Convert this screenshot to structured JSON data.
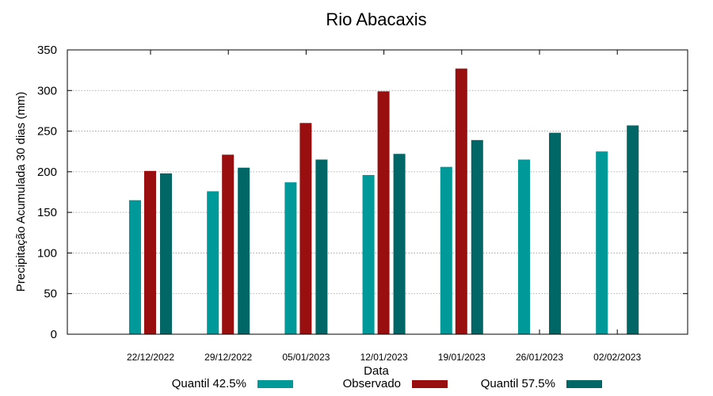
{
  "chart_data": {
    "type": "bar",
    "title": "Rio Abacaxis",
    "xlabel": "Data",
    "ylabel": "Precipitação Acumulada 30 dias (mm)",
    "ylim": [
      0,
      350
    ],
    "yticks": [
      0,
      50,
      100,
      150,
      200,
      250,
      300,
      350
    ],
    "grid": true,
    "legend_position": "bottom",
    "categories": [
      "22/12/2022",
      "29/12/2022",
      "05/01/2023",
      "12/01/2023",
      "19/01/2023",
      "26/01/2023",
      "02/02/2023"
    ],
    "series": [
      {
        "name": "Quantil 42.5%",
        "color": "#009999",
        "values": [
          165,
          176,
          187,
          196,
          206,
          215,
          225
        ]
      },
      {
        "name": "Observado",
        "color": "#990f0f",
        "values": [
          201,
          221,
          260,
          299,
          327,
          null,
          null
        ]
      },
      {
        "name": "Quantil 57.5%",
        "color": "#006666",
        "values": [
          198,
          205,
          215,
          222,
          239,
          248,
          257
        ]
      }
    ]
  }
}
